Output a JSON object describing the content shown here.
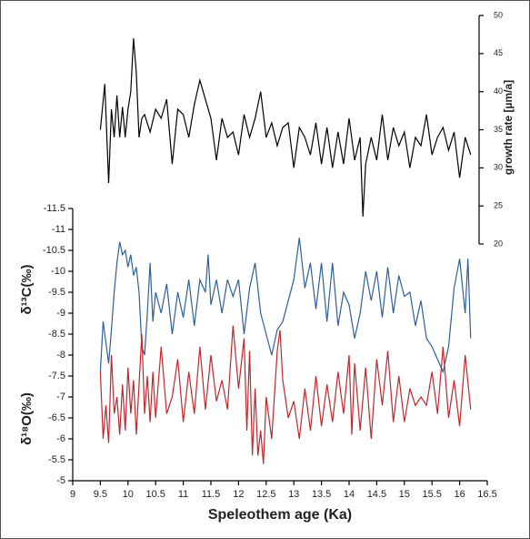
{
  "chart_data": {
    "type": "line",
    "xlabel": "Speleothem age (Ka)",
    "xlim": [
      9,
      16.5
    ],
    "xticks": [
      9,
      9.5,
      10,
      10.5,
      11,
      11.5,
      12,
      12.5,
      13,
      13.5,
      14,
      14.5,
      15,
      15.5,
      16,
      16.5
    ],
    "ylim": [
      -5,
      -11.5
    ],
    "yticks": [
      -11.5,
      -11,
      -10.5,
      -10,
      -9.5,
      -9,
      -8.5,
      -8,
      -7.5,
      -7,
      -6.5,
      -6,
      -5.5,
      -5
    ],
    "y2lim": [
      20,
      50
    ],
    "y2ticks": [
      20,
      25,
      30,
      35,
      40,
      45,
      50
    ],
    "series": [
      {
        "name": "growth rate [µm/a]",
        "color": "#000000",
        "axis": "y2",
        "x": [
          9.5,
          9.58,
          9.65,
          9.7,
          9.75,
          9.8,
          9.85,
          9.9,
          9.95,
          10.0,
          10.05,
          10.1,
          10.15,
          10.2,
          10.25,
          10.3,
          10.4,
          10.5,
          10.6,
          10.7,
          10.8,
          10.9,
          11.0,
          11.1,
          11.2,
          11.3,
          11.4,
          11.5,
          11.6,
          11.7,
          11.8,
          11.9,
          12.0,
          12.1,
          12.2,
          12.3,
          12.4,
          12.5,
          12.6,
          12.7,
          12.8,
          12.9,
          13.0,
          13.1,
          13.2,
          13.3,
          13.4,
          13.5,
          13.6,
          13.7,
          13.8,
          13.9,
          14.0,
          14.1,
          14.2,
          14.25,
          14.3,
          14.4,
          14.5,
          14.6,
          14.7,
          14.8,
          14.9,
          15.0,
          15.1,
          15.2,
          15.3,
          15.4,
          15.5,
          15.6,
          15.7,
          15.8,
          15.9,
          16.0,
          16.1,
          16.2
        ],
        "values": [
          35,
          41,
          28,
          37.7,
          34,
          39.5,
          34,
          38,
          34,
          37.7,
          40,
          47,
          42.5,
          34,
          36.5,
          37,
          34.7,
          37.7,
          36.5,
          39,
          30.5,
          37.7,
          37,
          34,
          38.3,
          41.5,
          39,
          36.5,
          31,
          36.5,
          34,
          34.7,
          31.7,
          37,
          34,
          36.5,
          40,
          34,
          35.9,
          32.9,
          35.3,
          35.9,
          30,
          35.3,
          34,
          31.7,
          35.9,
          30.5,
          35.3,
          30,
          34.7,
          30.5,
          36.5,
          31,
          34,
          23.6,
          30.5,
          34,
          31,
          37,
          31,
          35.3,
          32.9,
          34.7,
          30,
          34,
          32.9,
          37,
          31.7,
          34,
          35.3,
          32.3,
          34.7,
          28.7,
          34,
          31.7
        ]
      },
      {
        "name": "δ¹³C(‰)",
        "color": "#2f5f9a",
        "axis": "y",
        "x": [
          9.5,
          9.55,
          9.6,
          9.65,
          9.7,
          9.75,
          9.8,
          9.85,
          9.9,
          9.95,
          10.0,
          10.05,
          10.1,
          10.15,
          10.2,
          10.25,
          10.3,
          10.35,
          10.4,
          10.45,
          10.5,
          10.6,
          10.7,
          10.8,
          10.9,
          11.0,
          11.1,
          11.2,
          11.3,
          11.4,
          11.45,
          11.5,
          11.6,
          11.7,
          11.8,
          11.9,
          12.0,
          12.1,
          12.2,
          12.3,
          12.4,
          12.5,
          12.6,
          12.7,
          12.8,
          12.9,
          13.0,
          13.1,
          13.2,
          13.3,
          13.4,
          13.5,
          13.6,
          13.7,
          13.8,
          13.9,
          14.0,
          14.1,
          14.2,
          14.3,
          14.4,
          14.5,
          14.6,
          14.7,
          14.8,
          14.9,
          15.0,
          15.1,
          15.2,
          15.3,
          15.4,
          15.5,
          15.6,
          15.7,
          15.8,
          15.9,
          16.0,
          16.1,
          16.15,
          16.2
        ],
        "values": [
          -7.6,
          -8.8,
          -8.3,
          -7.8,
          -8.6,
          -9.5,
          -10.2,
          -10.7,
          -10.4,
          -10.5,
          -10.1,
          -10.4,
          -9.9,
          -10.1,
          -9.5,
          -8.2,
          -8.0,
          -9.0,
          -10.2,
          -8.8,
          -9.5,
          -9.0,
          -9.7,
          -8.5,
          -9.5,
          -8.9,
          -9.8,
          -8.7,
          -9.8,
          -9.5,
          -10.4,
          -9.2,
          -9.8,
          -9.0,
          -9.8,
          -9.4,
          -9.8,
          -8.5,
          -9.6,
          -10.2,
          -9.0,
          -8.5,
          -8.0,
          -8.6,
          -8.8,
          -9.3,
          -9.8,
          -10.8,
          -9.6,
          -10.2,
          -9.1,
          -10.2,
          -8.8,
          -10.2,
          -8.7,
          -9.5,
          -9.2,
          -8.4,
          -9.0,
          -10.0,
          -9.3,
          -10.0,
          -8.9,
          -10.1,
          -9.0,
          -9.9,
          -9.4,
          -9.5,
          -8.7,
          -9.3,
          -8.4,
          -8.2,
          -7.9,
          -7.6,
          -8.2,
          -9.6,
          -10.3,
          -9.0,
          -10.3,
          -8.4
        ]
      },
      {
        "name": "δ¹⁸O(‰)",
        "color": "#c0272d",
        "axis": "y",
        "x": [
          9.5,
          9.55,
          9.6,
          9.65,
          9.7,
          9.75,
          9.8,
          9.85,
          9.9,
          9.95,
          10.0,
          10.05,
          10.1,
          10.15,
          10.2,
          10.25,
          10.3,
          10.35,
          10.4,
          10.45,
          10.5,
          10.6,
          10.7,
          10.8,
          10.9,
          11.0,
          11.1,
          11.2,
          11.3,
          11.4,
          11.5,
          11.6,
          11.7,
          11.8,
          11.9,
          12.0,
          12.1,
          12.15,
          12.2,
          12.25,
          12.3,
          12.35,
          12.4,
          12.45,
          12.5,
          12.6,
          12.7,
          12.75,
          12.8,
          12.9,
          13.0,
          13.1,
          13.2,
          13.3,
          13.4,
          13.5,
          13.6,
          13.7,
          13.8,
          13.9,
          14.0,
          14.05,
          14.1,
          14.2,
          14.3,
          14.4,
          14.5,
          14.6,
          14.7,
          14.8,
          14.9,
          15.0,
          15.1,
          15.2,
          15.3,
          15.4,
          15.5,
          15.6,
          15.7,
          15.8,
          15.9,
          16.0,
          16.1,
          16.2
        ],
        "values": [
          -7.6,
          -6.0,
          -6.8,
          -5.9,
          -8.0,
          -6.6,
          -7.0,
          -6.1,
          -7.3,
          -6.2,
          -7.7,
          -6.6,
          -7.4,
          -6.1,
          -7.3,
          -8.5,
          -6.6,
          -7.5,
          -6.4,
          -7.6,
          -6.5,
          -8.2,
          -6.6,
          -7.0,
          -7.9,
          -6.4,
          -7.6,
          -6.6,
          -8.2,
          -6.7,
          -8.0,
          -6.9,
          -7.4,
          -6.7,
          -8.7,
          -7.2,
          -8.4,
          -6.2,
          -8.1,
          -5.6,
          -7.2,
          -5.6,
          -6.2,
          -5.4,
          -7.0,
          -6.0,
          -8.1,
          -8.6,
          -7.4,
          -6.5,
          -6.9,
          -6.0,
          -7.2,
          -6.2,
          -7.5,
          -6.3,
          -7.3,
          -6.4,
          -7.6,
          -6.6,
          -8.0,
          -6.1,
          -7.8,
          -6.2,
          -7.7,
          -6.0,
          -7.9,
          -6.8,
          -8.1,
          -6.4,
          -7.5,
          -6.4,
          -7.2,
          -6.8,
          -7.0,
          -6.8,
          -7.6,
          -6.6,
          -8.2,
          -6.5,
          -7.4,
          -6.3,
          -8.0,
          -6.7
        ]
      }
    ]
  }
}
